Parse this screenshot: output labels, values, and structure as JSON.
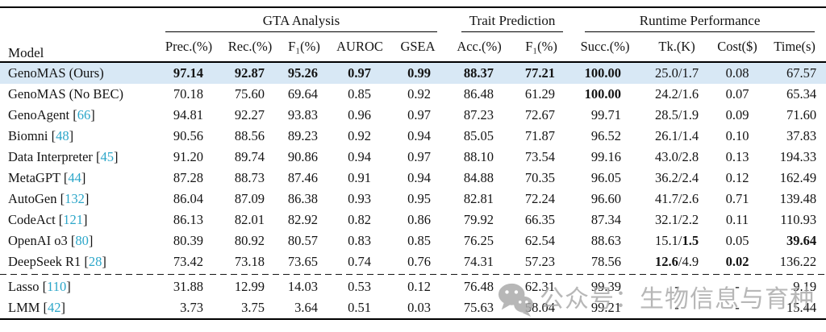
{
  "table": {
    "model_header": "Model",
    "groups": [
      {
        "label": "GTA Analysis",
        "cols": [
          "Prec.(%)",
          "Rec.(%)",
          "F₁(%)",
          "AUROC",
          "GSEA"
        ]
      },
      {
        "label": "Trait Prediction",
        "cols": [
          "Acc.(%)",
          "F₁(%)"
        ]
      },
      {
        "label": "Runtime Performance",
        "cols": [
          "Succ.(%)",
          "Tk.(K)",
          "Cost($)",
          "Time(s)"
        ]
      }
    ],
    "highlight_color": "#d8e8f5",
    "citation_color": "#2ba6c9",
    "rows": [
      {
        "model": "GenoMAS (Ours)",
        "highlight": true,
        "cells": [
          [
            [
              "97.14",
              true
            ]
          ],
          [
            [
              "92.87",
              true
            ]
          ],
          [
            [
              "95.26",
              true
            ]
          ],
          [
            [
              "0.97",
              true
            ]
          ],
          [
            [
              "0.99",
              true
            ]
          ],
          [
            [
              "88.37",
              true
            ]
          ],
          [
            [
              "77.21",
              true
            ]
          ],
          [
            [
              "100.00",
              true
            ]
          ],
          "25.0/1.7",
          "0.08",
          "67.57"
        ]
      },
      {
        "model": "GenoMAS (No BEC)",
        "cells": [
          "70.18",
          "75.60",
          "69.64",
          "0.85",
          "0.92",
          "86.48",
          "61.29",
          [
            [
              "100.00",
              true
            ]
          ],
          "24.2/1.6",
          "0.07",
          "65.34"
        ]
      },
      {
        "model": "GenoAgent",
        "cite": "66",
        "cells": [
          "94.81",
          "92.27",
          "93.83",
          "0.96",
          "0.97",
          "87.23",
          "72.67",
          "99.71",
          "28.5/1.9",
          "0.09",
          "71.60"
        ]
      },
      {
        "model": "Biomni",
        "cite": "48",
        "cells": [
          "90.56",
          "88.56",
          "89.23",
          "0.92",
          "0.94",
          "85.05",
          "71.87",
          "96.52",
          "26.1/1.4",
          "0.10",
          "37.83"
        ]
      },
      {
        "model": "Data Interpreter",
        "cite": "45",
        "cells": [
          "91.20",
          "89.74",
          "90.86",
          "0.94",
          "0.97",
          "88.10",
          "73.54",
          "99.16",
          "43.0/2.8",
          "0.13",
          "194.33"
        ]
      },
      {
        "model": "MetaGPT",
        "cite": "44",
        "cells": [
          "87.28",
          "88.73",
          "87.46",
          "0.91",
          "0.94",
          "84.88",
          "70.35",
          "96.05",
          "36.2/2.4",
          "0.12",
          "162.49"
        ]
      },
      {
        "model": "AutoGen",
        "cite": "132",
        "cells": [
          "86.04",
          "87.09",
          "86.38",
          "0.93",
          "0.95",
          "82.81",
          "72.24",
          "96.60",
          "41.7/2.6",
          "0.71",
          "139.48"
        ]
      },
      {
        "model": "CodeAct",
        "cite": "121",
        "cells": [
          "86.13",
          "82.01",
          "82.92",
          "0.82",
          "0.86",
          "79.92",
          "66.35",
          "87.34",
          "32.1/2.2",
          "0.11",
          "110.93"
        ]
      },
      {
        "model": "OpenAI o3",
        "cite": "80",
        "cells": [
          "80.39",
          "80.92",
          "80.57",
          "0.83",
          "0.85",
          "76.25",
          "62.54",
          "88.63",
          [
            [
              "15.1/",
              false
            ],
            [
              "1.5",
              true
            ]
          ],
          "0.05",
          [
            [
              "39.64",
              true
            ]
          ]
        ]
      },
      {
        "model": "DeepSeek R1",
        "cite": "28",
        "dashed_separator_after": true,
        "cells": [
          "73.42",
          "73.18",
          "73.65",
          "0.74",
          "0.76",
          "74.31",
          "57.23",
          "78.56",
          [
            [
              "12.6",
              true
            ],
            [
              "/4.9",
              false
            ]
          ],
          [
            [
              "0.02",
              true
            ]
          ],
          "136.22"
        ]
      },
      {
        "model": "Lasso",
        "cite": "110",
        "cells": [
          "31.88",
          "12.99",
          "14.03",
          "0.53",
          "0.12",
          "76.48",
          "62.31",
          "99.39",
          "-",
          "-",
          "9.19"
        ]
      },
      {
        "model": "LMM",
        "cite": "42",
        "cells": [
          "3.73",
          "3.75",
          "3.64",
          "0.51",
          "0.03",
          "75.63",
          "58.04",
          "99.21",
          "-",
          "-",
          "15.44"
        ]
      }
    ]
  },
  "watermark": {
    "icon": "wechat-icon",
    "text": "公众号：生物信息与育种"
  }
}
